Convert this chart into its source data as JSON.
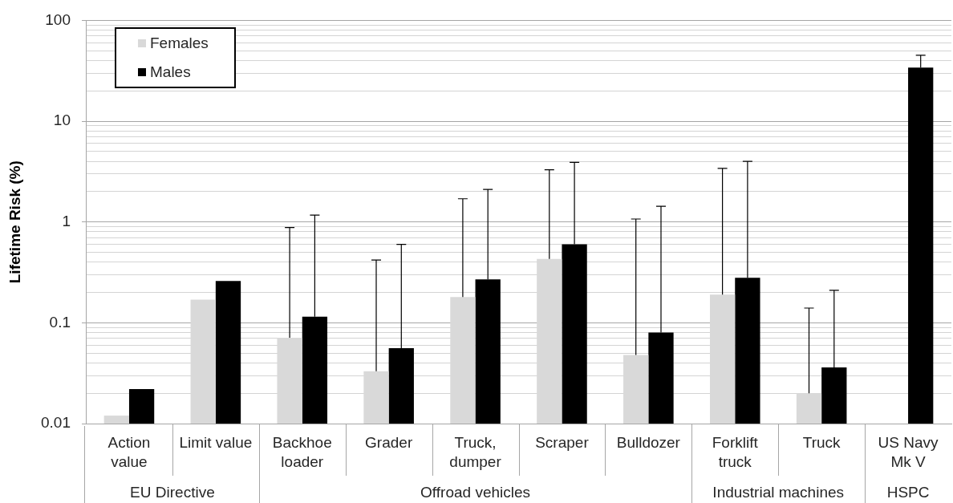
{
  "chart_data": {
    "type": "bar",
    "ylabel": "Lifetime Risk (%)",
    "categories": [
      "Action value",
      "Limit value",
      "Backhoe loader",
      "Grader",
      "Truck, dumper",
      "Scraper",
      "Bulldozer",
      "Forklift truck",
      "Truck",
      "US Navy Mk V"
    ],
    "series": [
      {
        "name": "Females",
        "color": "#d9d9d9",
        "values": [
          0.012,
          0.17,
          0.071,
          0.033,
          0.18,
          0.43,
          0.048,
          0.19,
          0.02,
          null
        ],
        "errors": [
          null,
          null,
          [
            0.071,
            0.88
          ],
          [
            0.033,
            0.42
          ],
          [
            0.18,
            1.7
          ],
          [
            0.43,
            3.3
          ],
          [
            0.048,
            1.07
          ],
          [
            0.19,
            3.4
          ],
          [
            0.02,
            0.14
          ],
          null
        ]
      },
      {
        "name": "Males",
        "color": "#000000",
        "values": [
          0.022,
          0.26,
          0.115,
          0.056,
          0.27,
          0.6,
          0.08,
          0.28,
          0.036,
          34
        ],
        "errors": [
          null,
          null,
          [
            0.115,
            1.17
          ],
          [
            0.056,
            0.6
          ],
          [
            0.27,
            2.1
          ],
          [
            0.6,
            3.9
          ],
          [
            0.08,
            1.43
          ],
          [
            0.28,
            4.0
          ],
          [
            0.036,
            0.21
          ],
          [
            34,
            45
          ]
        ]
      }
    ],
    "log": true,
    "ylim": [
      0.01,
      100
    ],
    "yticks": [
      0.01,
      {
        "value": 0.02,
        "label": null
      },
      {
        "value": 0.03,
        "label": null
      },
      {
        "value": 0.04,
        "label": null
      },
      {
        "value": 0.05,
        "label": null
      },
      {
        "value": 0.06,
        "label": null
      },
      {
        "value": 0.07,
        "label": null
      },
      {
        "value": 0.08,
        "label": null
      },
      {
        "value": 0.09,
        "label": null
      },
      0.1,
      {
        "value": 0.2,
        "label": null
      },
      {
        "value": 0.3,
        "label": null
      },
      {
        "value": 0.4,
        "label": null
      },
      {
        "value": 0.5,
        "label": null
      },
      {
        "value": 0.6,
        "label": null
      },
      {
        "value": 0.7,
        "label": null
      },
      {
        "value": 0.8,
        "label": null
      },
      {
        "value": 0.9,
        "label": null
      },
      1,
      {
        "value": 2,
        "label": null
      },
      {
        "value": 3,
        "label": null
      },
      {
        "value": 4,
        "label": null
      },
      {
        "value": 5,
        "label": null
      },
      {
        "value": 6,
        "label": null
      },
      {
        "value": 7,
        "label": null
      },
      {
        "value": 8,
        "label": null
      },
      {
        "value": 9,
        "label": null
      },
      10,
      {
        "value": 20,
        "label": null
      },
      {
        "value": 30,
        "label": null
      },
      {
        "value": 40,
        "label": null
      },
      {
        "value": 50,
        "label": null
      },
      {
        "value": 60,
        "label": null
      },
      {
        "value": 70,
        "label": null
      },
      {
        "value": 80,
        "label": null
      },
      {
        "value": 90,
        "label": null
      },
      100
    ],
    "grid": "y",
    "legend": "top left",
    "annotations": [
      "EU Directive",
      "Offroad vehicles",
      "Industrial machines",
      "HSPC"
    ]
  }
}
